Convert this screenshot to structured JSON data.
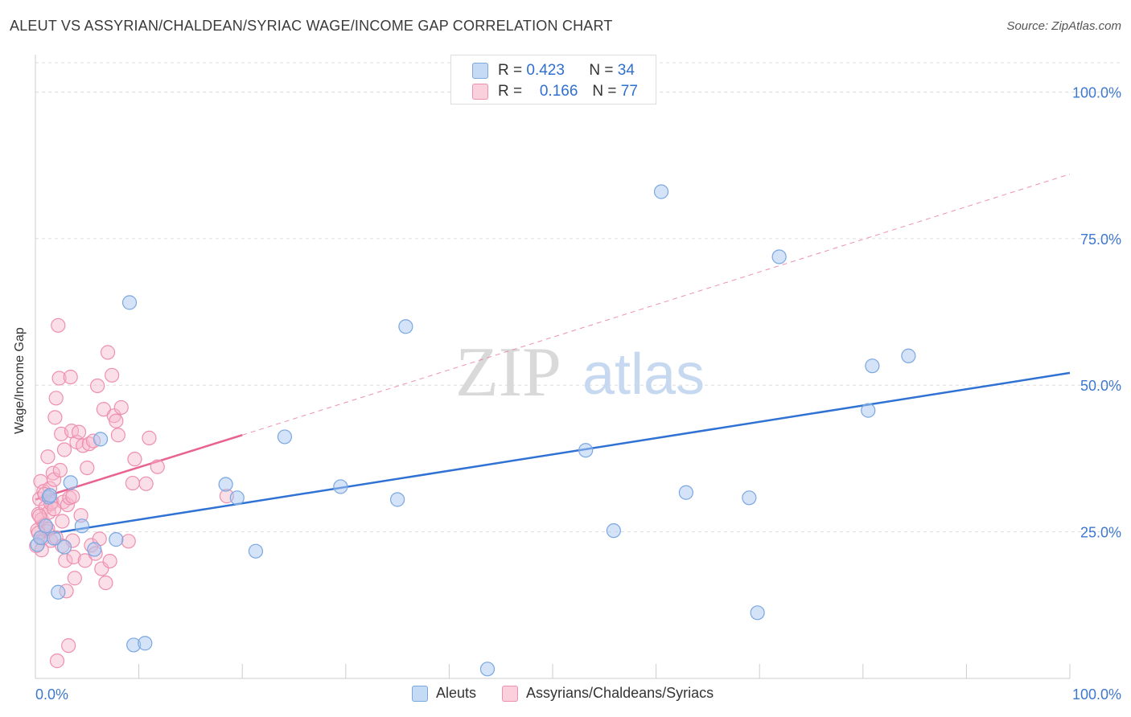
{
  "title": "ALEUT VS ASSYRIAN/CHALDEAN/SYRIAC WAGE/INCOME GAP CORRELATION CHART",
  "source": "Source: ZipAtlas.com",
  "watermark": {
    "zip": "ZIP",
    "atlas": "atlas"
  },
  "legend_top": {
    "rows": [
      {
        "r_label": "R =",
        "r_value": "0.423",
        "n_label": "N =",
        "n_value": "34"
      },
      {
        "r_label": "R =",
        "r_value": "0.166",
        "n_label": "N =",
        "n_value": "77"
      }
    ]
  },
  "legend_bottom": {
    "items": [
      "Aleuts",
      "Assyrians/Chaldeans/Syriacs"
    ]
  },
  "colors": {
    "aleut_fill": "#aac8f0",
    "aleut_stroke": "#7aa7e0",
    "aleut_line": "#2f72d4",
    "assyr_fill": "#f7b8cc",
    "assyr_stroke": "#ee8fae",
    "assyr_line": "#e8638f",
    "axis_text": "#3e78cc",
    "grid": "#dddddd"
  },
  "chart_data": {
    "type": "scatter",
    "title": "ALEUT VS ASSYRIAN/CHALDEAN/SYRIAC WAGE/INCOME GAP CORRELATION CHART",
    "xlabel": "",
    "ylabel": "Wage/Income Gap",
    "xlim": [
      0,
      100
    ],
    "ylim": [
      0,
      105
    ],
    "x_tick_labels": [
      "0.0%",
      "100.0%"
    ],
    "y_ticks": [
      25,
      50,
      75,
      100
    ],
    "y_tick_labels": [
      "25.0%",
      "50.0%",
      "75.0%",
      "100.0%"
    ],
    "series": [
      {
        "name": "Aleuts",
        "r": 0.423,
        "n": 34,
        "trend": {
          "x": [
            0,
            100
          ],
          "y": [
            24.3,
            52.1
          ],
          "style": "solid"
        },
        "points": [
          [
            0.2,
            22.8
          ],
          [
            0.5,
            24.0
          ],
          [
            1.0,
            26.0
          ],
          [
            1.3,
            30.9
          ],
          [
            1.8,
            23.9
          ],
          [
            2.2,
            14.7
          ],
          [
            2.8,
            22.4
          ],
          [
            3.4,
            33.4
          ],
          [
            4.5,
            26.0
          ],
          [
            5.7,
            22.0
          ],
          [
            6.3,
            40.8
          ],
          [
            7.8,
            23.7
          ],
          [
            9.1,
            64.1
          ],
          [
            9.5,
            5.7
          ],
          [
            10.6,
            6.0
          ],
          [
            18.4,
            33.1
          ],
          [
            19.5,
            30.8
          ],
          [
            21.3,
            21.7
          ],
          [
            24.1,
            41.2
          ],
          [
            29.5,
            32.7
          ],
          [
            35.0,
            30.5
          ],
          [
            35.8,
            60.0
          ],
          [
            43.7,
            1.6
          ],
          [
            53.2,
            38.9
          ],
          [
            55.9,
            25.2
          ],
          [
            60.5,
            83.0
          ],
          [
            62.9,
            31.7
          ],
          [
            69.0,
            30.8
          ],
          [
            69.8,
            11.2
          ],
          [
            71.9,
            71.9
          ],
          [
            80.5,
            45.7
          ],
          [
            80.9,
            53.3
          ],
          [
            84.4,
            55.0
          ],
          [
            1.4,
            31.2
          ]
        ]
      },
      {
        "name": "Assyrians/Chaldeans/Syriacs",
        "r": 0.166,
        "n": 77,
        "trend": {
          "x": [
            0,
            20
          ],
          "y": [
            30.5,
            41.5
          ],
          "style": "solid",
          "extended": {
            "x": [
              20,
              100
            ],
            "y": [
              41.5,
              86.0
            ],
            "style": "dashed"
          }
        },
        "points": [
          [
            0.1,
            22.6
          ],
          [
            0.2,
            25.3
          ],
          [
            0.3,
            28.0
          ],
          [
            0.4,
            30.6
          ],
          [
            0.5,
            33.6
          ],
          [
            0.6,
            27.1
          ],
          [
            0.7,
            23.9
          ],
          [
            0.8,
            31.9
          ],
          [
            0.9,
            26.2
          ],
          [
            1.0,
            29.2
          ],
          [
            1.1,
            25.1
          ],
          [
            1.2,
            37.8
          ],
          [
            1.3,
            28.3
          ],
          [
            1.4,
            32.4
          ],
          [
            1.5,
            23.5
          ],
          [
            1.6,
            30.1
          ],
          [
            1.7,
            35.0
          ],
          [
            1.8,
            33.9
          ],
          [
            1.9,
            44.5
          ],
          [
            2.0,
            47.8
          ],
          [
            2.1,
            3.0
          ],
          [
            2.2,
            60.2
          ],
          [
            2.3,
            51.2
          ],
          [
            2.4,
            35.5
          ],
          [
            2.5,
            41.7
          ],
          [
            2.6,
            26.8
          ],
          [
            2.7,
            30.1
          ],
          [
            2.8,
            39.0
          ],
          [
            2.9,
            20.1
          ],
          [
            3.0,
            14.9
          ],
          [
            3.1,
            29.6
          ],
          [
            3.2,
            5.6
          ],
          [
            3.3,
            30.8
          ],
          [
            3.4,
            51.4
          ],
          [
            3.5,
            42.2
          ],
          [
            3.6,
            23.5
          ],
          [
            3.7,
            20.7
          ],
          [
            3.8,
            17.1
          ],
          [
            4.0,
            40.3
          ],
          [
            4.2,
            42.0
          ],
          [
            4.4,
            27.8
          ],
          [
            4.6,
            39.7
          ],
          [
            4.8,
            20.1
          ],
          [
            5.0,
            35.9
          ],
          [
            5.2,
            40.0
          ],
          [
            5.4,
            22.7
          ],
          [
            5.6,
            40.5
          ],
          [
            5.8,
            21.3
          ],
          [
            6.0,
            49.9
          ],
          [
            6.2,
            23.8
          ],
          [
            6.4,
            18.7
          ],
          [
            6.6,
            45.9
          ],
          [
            6.8,
            16.3
          ],
          [
            7.0,
            55.6
          ],
          [
            7.2,
            20.0
          ],
          [
            7.4,
            51.7
          ],
          [
            7.6,
            44.8
          ],
          [
            7.8,
            43.9
          ],
          [
            8.0,
            41.5
          ],
          [
            8.3,
            46.2
          ],
          [
            9.0,
            23.4
          ],
          [
            9.4,
            33.3
          ],
          [
            9.6,
            37.4
          ],
          [
            10.7,
            33.2
          ],
          [
            11.0,
            41.0
          ],
          [
            11.8,
            36.1
          ],
          [
            18.5,
            31.1
          ],
          [
            1.5,
            29.8
          ],
          [
            0.9,
            31.4
          ],
          [
            2.0,
            24.0
          ],
          [
            1.2,
            25.5
          ],
          [
            0.4,
            27.7
          ],
          [
            0.6,
            21.9
          ],
          [
            1.8,
            28.9
          ],
          [
            2.6,
            22.6
          ],
          [
            3.6,
            31.0
          ],
          [
            0.3,
            24.8
          ]
        ]
      }
    ]
  }
}
